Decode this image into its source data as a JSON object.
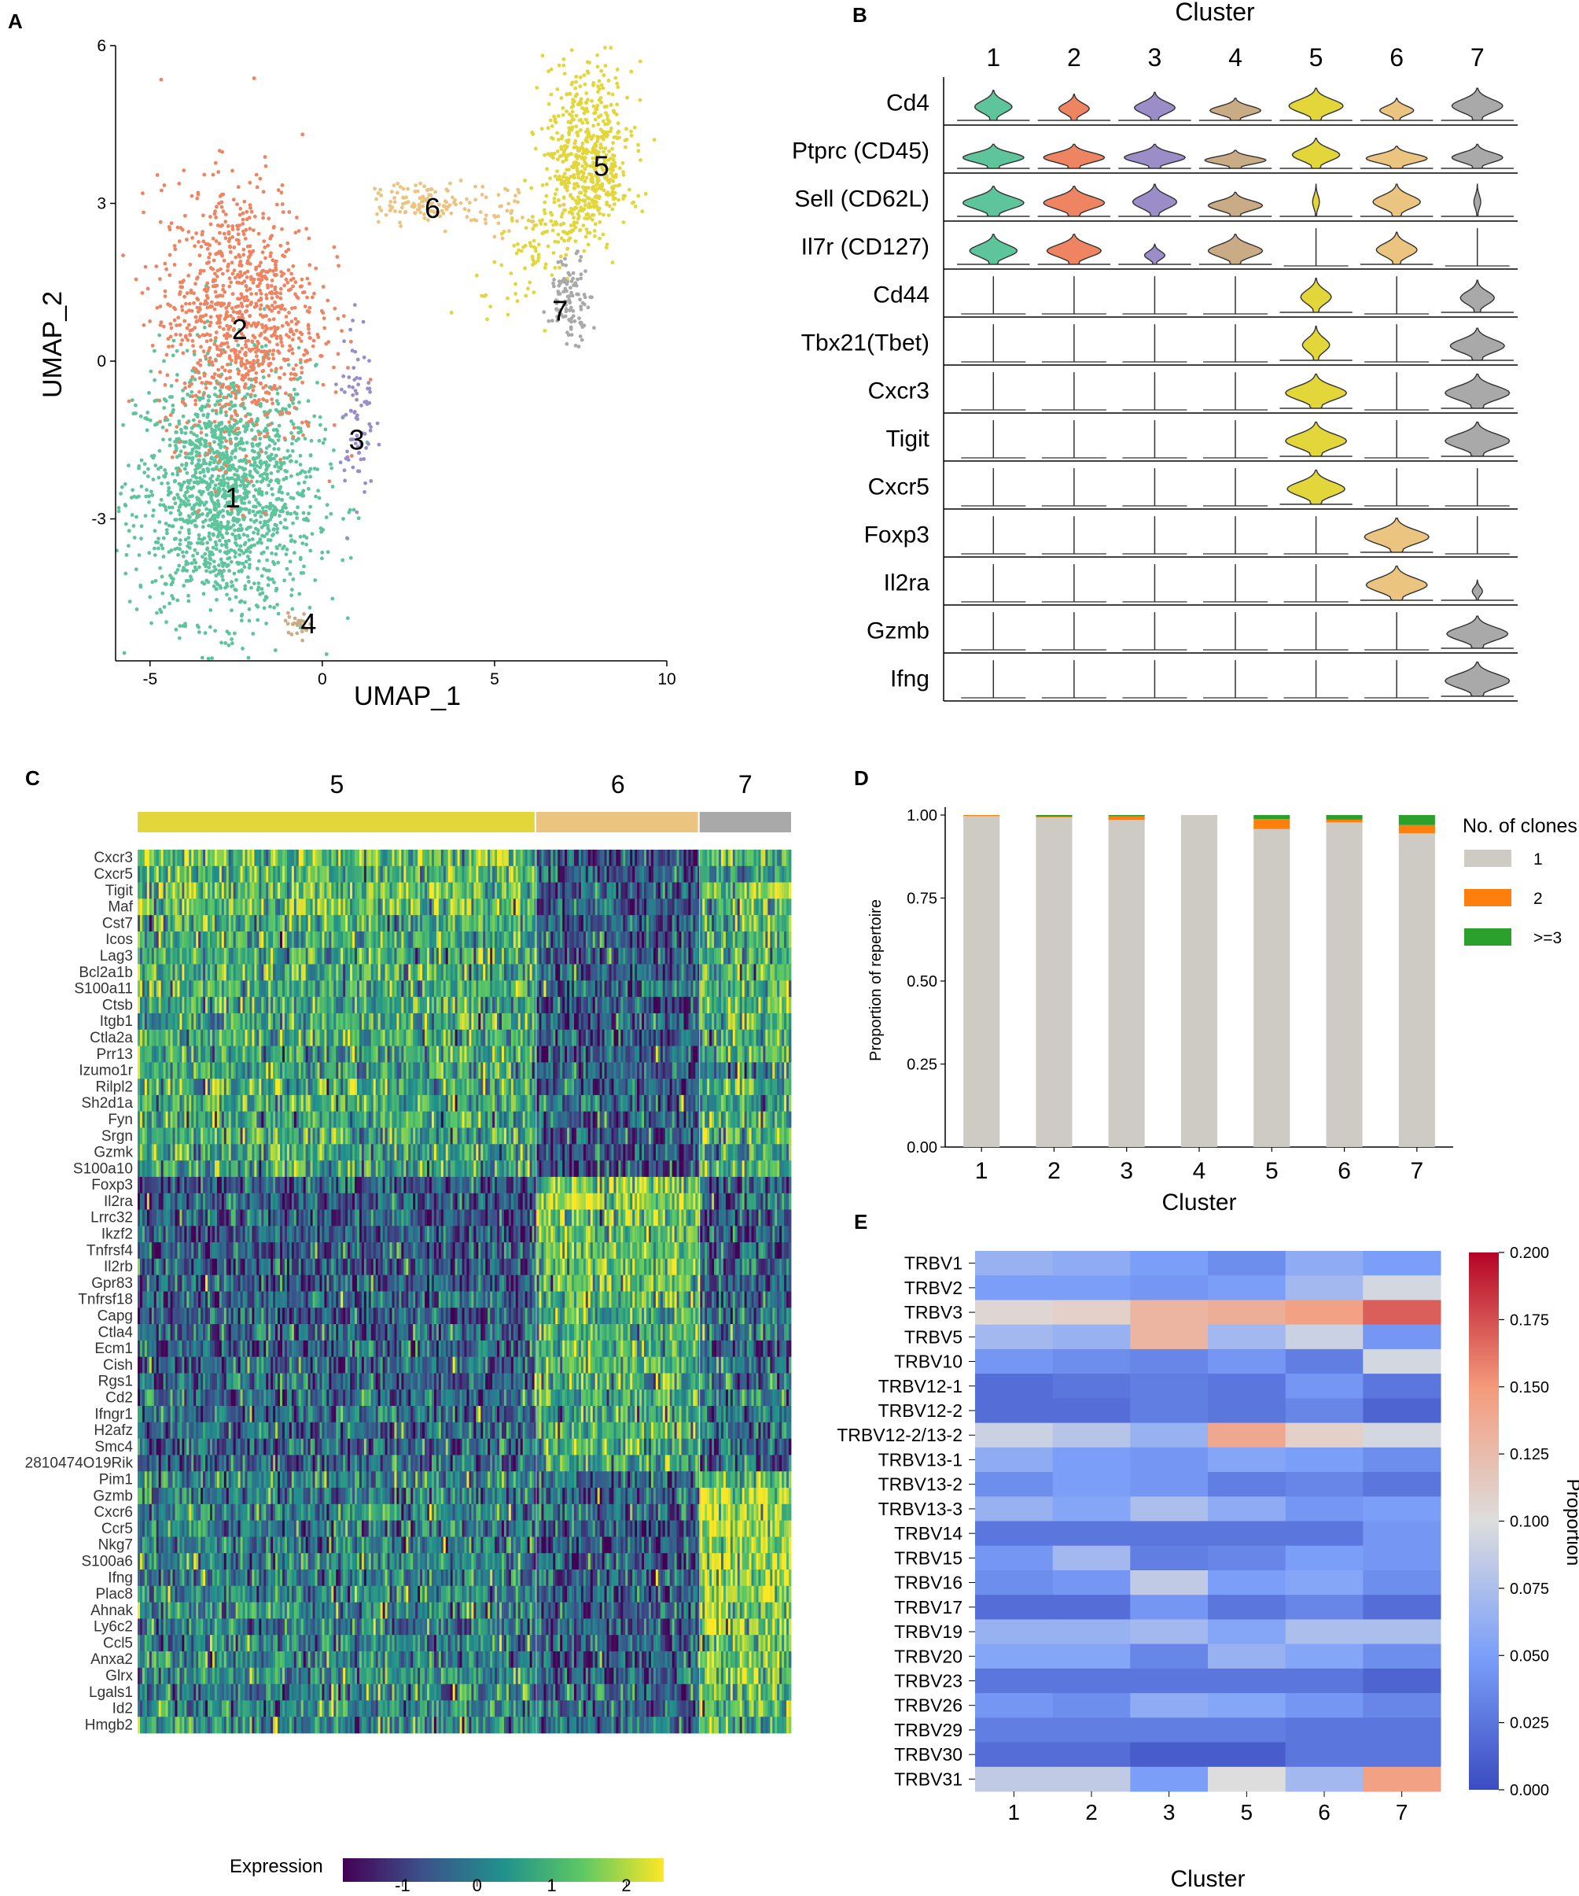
{
  "panels": {
    "A": "A",
    "B": "B",
    "C": "C",
    "D": "D",
    "E": "E"
  },
  "colors": {
    "c1": "#5ec49c",
    "c2": "#ee8462",
    "c3": "#9b8dc8",
    "c4": "#c9ab85",
    "c5": "#e2d63a",
    "c6": "#ebc480",
    "c7": "#a9a9a9",
    "bar1": "#cdcbc3",
    "bar2": "#ff7f0e",
    "bar3": "#2ca02c"
  },
  "chart_data": [
    {
      "id": "umap",
      "type": "scatter",
      "xlabel": "UMAP_1",
      "ylabel": "UMAP_2",
      "xlim": [
        -6,
        10
      ],
      "ylim": [
        -5.7,
        6
      ],
      "xticks": [
        "-5",
        "0",
        "5",
        "10"
      ],
      "xtick_values": [
        -5,
        0,
        5,
        10
      ],
      "yticks": [
        "-3",
        "0",
        "3",
        "6"
      ],
      "ytick_values": [
        -3,
        0,
        3,
        6
      ],
      "clusters": [
        {
          "label": "1",
          "cx": -2.8,
          "cy": -2.5,
          "sx": 1.3,
          "sy": 1.2,
          "n": 1600,
          "color": "#5ec49c",
          "label_pos": [
            -2.6,
            -2.6
          ]
        },
        {
          "label": "2",
          "cx": -2.4,
          "cy": 0.9,
          "sx": 1.15,
          "sy": 1.25,
          "n": 1000,
          "color": "#ee8462",
          "label_pos": [
            -2.4,
            0.6
          ]
        },
        {
          "label": "3",
          "cx": 1.0,
          "cy": -1.0,
          "sx": 0.25,
          "sy": 1.0,
          "n": 80,
          "color": "#9b8dc8",
          "label_pos": [
            1.0,
            -1.5
          ]
        },
        {
          "label": "4",
          "cx": -0.7,
          "cy": -5.0,
          "sx": 0.2,
          "sy": 0.1,
          "n": 25,
          "color": "#c9ab85",
          "label_pos": [
            -0.4,
            -5.0
          ]
        },
        {
          "label": "5",
          "cx": 7.7,
          "cy": 3.6,
          "sx": 0.65,
          "sy": 1.0,
          "n": 700,
          "color": "#e2d63a",
          "label_pos": [
            8.1,
            3.7
          ]
        },
        {
          "label": "6",
          "cx": 2.8,
          "cy": 3.0,
          "sx": 0.6,
          "sy": 0.2,
          "n": 150,
          "color": "#ebc480",
          "label_pos": [
            3.2,
            2.9
          ]
        },
        {
          "label": "7",
          "cx": 7.2,
          "cy": 1.2,
          "sx": 0.3,
          "sy": 0.4,
          "n": 110,
          "color": "#a9a9a9",
          "label_pos": [
            6.9,
            0.95
          ]
        }
      ]
    },
    {
      "id": "violin",
      "type": "violin",
      "title": "Cluster",
      "clusters": [
        "1",
        "2",
        "3",
        "4",
        "5",
        "6",
        "7"
      ],
      "genes": [
        "Cd4",
        "Ptprc (CD45)",
        "Sell (CD62L)",
        "Il7r (CD127)",
        "Cd44",
        "Tbx21(Tbet)",
        "Cxcr3",
        "Tigit",
        "Cxcr5",
        "Foxp3",
        "Il2ra",
        "Gzmb",
        "Ifng"
      ],
      "relative_width": [
        [
          0.55,
          0.45,
          0.6,
          0.75,
          0.8,
          0.5,
          0.75
        ],
        [
          0.9,
          0.9,
          0.9,
          0.9,
          0.7,
          0.9,
          0.75
        ],
        [
          0.9,
          0.9,
          0.65,
          0.8,
          0.1,
          0.7,
          0.1
        ],
        [
          0.7,
          0.8,
          0.3,
          0.8,
          0,
          0.6,
          0
        ],
        [
          0,
          0,
          0,
          0.1,
          0.45,
          0,
          0.5
        ],
        [
          0,
          0,
          0,
          0,
          0.4,
          0,
          0.8
        ],
        [
          0,
          0,
          0,
          0.08,
          0.9,
          0,
          0.95
        ],
        [
          0,
          0,
          0,
          0,
          0.9,
          0,
          0.95
        ],
        [
          0,
          0,
          0,
          0.07,
          0.85,
          0,
          0
        ],
        [
          0,
          0,
          0,
          0,
          0,
          0.95,
          0
        ],
        [
          0,
          0,
          0,
          0,
          0,
          0.9,
          0.15
        ],
        [
          0,
          0,
          0,
          0.08,
          0,
          0,
          0.9
        ],
        [
          0,
          0,
          0,
          0,
          0,
          0,
          0.95
        ]
      ],
      "shape_height": [
        [
          0.75,
          0.65,
          0.7,
          0.55,
          0.8,
          0.55,
          0.8
        ],
        [
          0.6,
          0.6,
          0.6,
          0.45,
          0.75,
          0.55,
          0.6
        ],
        [
          0.75,
          0.75,
          0.8,
          0.6,
          0.8,
          0.8,
          0.8
        ],
        [
          0.75,
          0.75,
          0.5,
          0.75,
          0,
          0.8,
          0
        ],
        [
          0,
          0,
          0,
          0,
          0.85,
          0,
          0.8
        ],
        [
          0,
          0,
          0,
          0,
          0.85,
          0,
          0.8
        ],
        [
          0,
          0,
          0,
          0,
          0.85,
          0,
          0.85
        ],
        [
          0,
          0,
          0,
          0,
          0.85,
          0,
          0.85
        ],
        [
          0,
          0,
          0,
          0,
          0.85,
          0,
          0
        ],
        [
          0,
          0,
          0,
          0,
          0,
          0.85,
          0
        ],
        [
          0,
          0,
          0,
          0,
          0,
          0.85,
          0.5
        ],
        [
          0,
          0,
          0,
          0,
          0,
          0,
          0.8
        ],
        [
          0,
          0,
          0,
          0,
          0,
          0,
          0.85
        ]
      ]
    },
    {
      "id": "heatmap_c",
      "type": "heatmap",
      "groups": [
        {
          "label": "5",
          "fraction": 0.61,
          "color": "#e2d63a"
        },
        {
          "label": "6",
          "fraction": 0.25,
          "color": "#ebc480"
        },
        {
          "label": "7",
          "fraction": 0.14,
          "color": "#a9a9a9"
        }
      ],
      "genes": [
        "Cxcr3",
        "Cxcr5",
        "Tigit",
        "Maf",
        "Cst7",
        "Icos",
        "Lag3",
        "Bcl2a1b",
        "S100a11",
        "Ctsb",
        "Itgb1",
        "Ctla2a",
        "Prr13",
        "Izumo1r",
        "Rilpl2",
        "Sh2d1a",
        "Fyn",
        "Srgn",
        "Gzmk",
        "S100a10",
        "Foxp3",
        "Il2ra",
        "Lrrc32",
        "Ikzf2",
        "Tnfrsf4",
        "Il2rb",
        "Gpr83",
        "Tnfrsf18",
        "Capg",
        "Ctla4",
        "Ecm1",
        "Cish",
        "Rgs1",
        "Cd2",
        "Ifngr1",
        "H2afz",
        "Smc4",
        "2810474O19Rik",
        "Pim1",
        "Gzmb",
        "Cxcr6",
        "Ccr5",
        "Nkg7",
        "S100a6",
        "Ifng",
        "Plac8",
        "Ahnak",
        "Ly6c2",
        "Ccl5",
        "Anxa2",
        "Glrx",
        "Lgals1",
        "Id2",
        "Hmgb2"
      ],
      "mean_expression_by_group": {
        "5": [
          1.3,
          1.1,
          1.2,
          1.1,
          0.9,
          0.9,
          0.8,
          0.8,
          0.8,
          0.8,
          0.8,
          0.9,
          0.8,
          0.6,
          0.8,
          0.8,
          0.7,
          0.7,
          0.8,
          0.7,
          -0.6,
          -0.6,
          -0.6,
          -0.5,
          -0.5,
          -0.6,
          -0.6,
          -0.5,
          -0.5,
          -0.4,
          -0.5,
          -0.4,
          -0.3,
          -0.3,
          -0.3,
          -0.4,
          -0.4,
          -0.3,
          0.3,
          0.0,
          0.1,
          0.0,
          0.1,
          0.2,
          0.0,
          0.1,
          0.2,
          0.1,
          0.1,
          0.1,
          0.2,
          0.1,
          0.2,
          0.3
        ],
        "6": [
          -0.7,
          -0.6,
          -0.6,
          -0.6,
          -0.5,
          -0.5,
          -0.5,
          -0.6,
          -0.5,
          -0.6,
          -0.5,
          -0.8,
          -0.6,
          -0.2,
          -0.5,
          -0.4,
          -0.6,
          -0.6,
          -0.8,
          -0.7,
          1.5,
          1.5,
          1.3,
          1.2,
          1.2,
          1.3,
          1.1,
          1.1,
          1.0,
          0.9,
          1.0,
          0.9,
          0.8,
          0.8,
          0.8,
          0.9,
          0.9,
          0.8,
          -0.2,
          -0.6,
          -0.5,
          -0.6,
          -0.6,
          -0.6,
          -0.6,
          -0.5,
          -0.5,
          -0.5,
          -0.5,
          -0.4,
          -0.4,
          -0.3,
          -0.5,
          -0.3
        ],
        "7": [
          1.2,
          0.5,
          1.4,
          1.0,
          1.2,
          0.7,
          1.0,
          1.0,
          1.1,
          1.1,
          1.0,
          0.8,
          0.9,
          0.0,
          0.8,
          0.8,
          0.9,
          0.9,
          0.6,
          0.9,
          -0.6,
          -0.5,
          -0.6,
          -0.5,
          -0.4,
          -0.4,
          -0.5,
          -0.4,
          -0.1,
          0.1,
          -0.4,
          -0.2,
          -0.2,
          0.0,
          -0.1,
          -0.5,
          -0.6,
          -0.5,
          1.0,
          2.0,
          1.8,
          1.8,
          1.9,
          1.8,
          1.9,
          1.6,
          1.6,
          1.5,
          1.5,
          1.4,
          1.4,
          1.2,
          1.2,
          0.8
        ]
      },
      "colorbar": {
        "label": "Expression",
        "ticks": [
          "-1",
          "0",
          "1",
          "2"
        ],
        "tick_values": [
          -1,
          0,
          1,
          2
        ],
        "range": [
          -1.8,
          2.5
        ]
      }
    },
    {
      "id": "bar_d",
      "type": "bar",
      "stacked": true,
      "categories": [
        "1",
        "2",
        "3",
        "4",
        "5",
        "6",
        "7"
      ],
      "xlabel": "Cluster",
      "ylabel": "Proportion of repertoire",
      "ylim": [
        0,
        1.0
      ],
      "yticks": [
        "0.00",
        "0.25",
        "0.50",
        "0.75",
        "1.00"
      ],
      "ytick_values": [
        0,
        0.25,
        0.5,
        0.75,
        1.0
      ],
      "legend_title": "No. of clones",
      "series": [
        {
          "name": "1",
          "color": "#cdcbc3",
          "values": [
            0.997,
            0.993,
            0.985,
            1.0,
            0.958,
            0.978,
            0.945
          ]
        },
        {
          "name": "2",
          "color": "#ff7f0e",
          "values": [
            0.003,
            0.002,
            0.011,
            0.0,
            0.03,
            0.008,
            0.025
          ]
        },
        {
          "name": ">=3",
          "color": "#2ca02c",
          "values": [
            0.0,
            0.005,
            0.004,
            0.0,
            0.012,
            0.014,
            0.03
          ]
        }
      ]
    },
    {
      "id": "heatmap_e",
      "type": "heatmap",
      "rows": [
        "TRBV1",
        "TRBV2",
        "TRBV3",
        "TRBV5",
        "TRBV10",
        "TRBV12-1",
        "TRBV12-2",
        "TRBV12-2/13-2",
        "TRBV13-1",
        "TRBV13-2",
        "TRBV13-3",
        "TRBV14",
        "TRBV15",
        "TRBV16",
        "TRBV17",
        "TRBV19",
        "TRBV20",
        "TRBV23",
        "TRBV26",
        "TRBV29",
        "TRBV30",
        "TRBV31"
      ],
      "columns": [
        "1",
        "2",
        "3",
        "5",
        "6",
        "7"
      ],
      "xlabel": "Cluster",
      "colorbar": {
        "label": "Proportion",
        "range": [
          0,
          0.2
        ],
        "ticks": [
          "0.000",
          "0.025",
          "0.050",
          "0.075",
          "0.100",
          "0.125",
          "0.150",
          "0.175",
          "0.200"
        ],
        "tick_values": [
          0,
          0.025,
          0.05,
          0.075,
          0.1,
          0.125,
          0.15,
          0.175,
          0.2
        ]
      },
      "values": [
        [
          0.065,
          0.06,
          0.05,
          0.04,
          0.06,
          0.05
        ],
        [
          0.05,
          0.05,
          0.045,
          0.05,
          0.07,
          0.095
        ],
        [
          0.105,
          0.11,
          0.13,
          0.135,
          0.145,
          0.17
        ],
        [
          0.07,
          0.065,
          0.13,
          0.07,
          0.09,
          0.045
        ],
        [
          0.045,
          0.04,
          0.035,
          0.045,
          0.03,
          0.095
        ],
        [
          0.02,
          0.025,
          0.03,
          0.025,
          0.045,
          0.025
        ],
        [
          0.02,
          0.02,
          0.03,
          0.025,
          0.035,
          0.015
        ],
        [
          0.09,
          0.08,
          0.065,
          0.14,
          0.11,
          0.095
        ],
        [
          0.06,
          0.05,
          0.045,
          0.055,
          0.05,
          0.04
        ],
        [
          0.04,
          0.05,
          0.045,
          0.03,
          0.035,
          0.025
        ],
        [
          0.065,
          0.055,
          0.075,
          0.06,
          0.045,
          0.05
        ],
        [
          0.025,
          0.025,
          0.025,
          0.025,
          0.025,
          0.045
        ],
        [
          0.045,
          0.07,
          0.03,
          0.035,
          0.05,
          0.045
        ],
        [
          0.04,
          0.045,
          0.085,
          0.05,
          0.055,
          0.04
        ],
        [
          0.02,
          0.02,
          0.045,
          0.025,
          0.035,
          0.02
        ],
        [
          0.065,
          0.065,
          0.07,
          0.055,
          0.075,
          0.075
        ],
        [
          0.055,
          0.055,
          0.035,
          0.065,
          0.055,
          0.04
        ],
        [
          0.025,
          0.025,
          0.025,
          0.025,
          0.025,
          0.015
        ],
        [
          0.045,
          0.04,
          0.06,
          0.055,
          0.045,
          0.035
        ],
        [
          0.03,
          0.03,
          0.03,
          0.03,
          0.025,
          0.025
        ],
        [
          0.02,
          0.02,
          0.01,
          0.01,
          0.025,
          0.025
        ],
        [
          0.085,
          0.085,
          0.05,
          0.1,
          0.07,
          0.145
        ]
      ]
    }
  ]
}
